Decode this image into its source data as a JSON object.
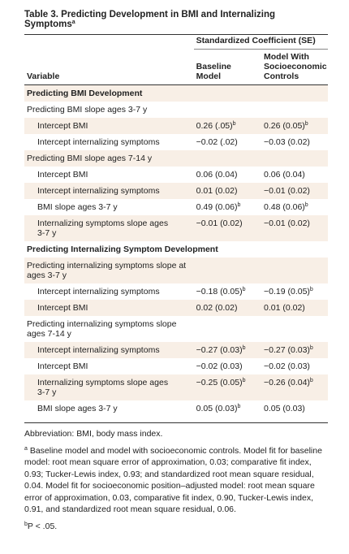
{
  "title": "Table 3. Predicting Development in BMI and Internalizing Symptoms",
  "title_sup": "a",
  "header": {
    "group": "Standardized Coefficient (SE)",
    "variable": "Variable",
    "baseline": "Baseline Model",
    "controls": "Model With Socioeconomic Controls"
  },
  "sections": [
    {
      "title": "Predicting BMI Development",
      "groups": [
        {
          "title": "Predicting BMI slope ages 3-7 y",
          "rows": [
            {
              "label": "Intercept BMI",
              "baseline": "0.26 (.05)",
              "baseline_sup": "b",
              "controls": "0.26 (0.05)",
              "controls_sup": "b"
            },
            {
              "label": "Intercept internalizing symptoms",
              "baseline": "−0.02 (.02)",
              "controls": "−0.03 (0.02)"
            }
          ]
        },
        {
          "title": "Predicting BMI slope ages 7-14 y",
          "rows": [
            {
              "label": "Intercept BMI",
              "baseline": "0.06 (0.04)",
              "controls": "0.06 (0.04)"
            },
            {
              "label": "Intercept internalizing symptoms",
              "baseline": "0.01 (0.02)",
              "controls": "−0.01 (0.02)"
            },
            {
              "label": "BMI slope ages 3-7 y",
              "baseline": "0.49 (0.06)",
              "baseline_sup": "b",
              "controls": "0.48 (0.06)",
              "controls_sup": "b"
            },
            {
              "label": "Internalizing symptoms slope ages 3-7 y",
              "baseline": "−0.01 (0.02)",
              "controls": "−0.01 (0.02)"
            }
          ]
        }
      ]
    },
    {
      "title": "Predicting Internalizing Symptom Development",
      "groups": [
        {
          "title": "Predicting internalizing symptoms slope at ages 3-7 y",
          "rows": [
            {
              "label": "Intercept internalizing symptoms",
              "baseline": "−0.18 (0.05)",
              "baseline_sup": "b",
              "controls": "−0.19 (0.05)",
              "controls_sup": "b"
            },
            {
              "label": "Intercept BMI",
              "baseline": "0.02 (0.02)",
              "controls": "0.01 (0.02)"
            }
          ]
        },
        {
          "title": "Predicting internalizing symptoms slope ages 7-14 y",
          "rows": [
            {
              "label": "Intercept internalizing symptoms",
              "baseline": "−0.27 (0.03)",
              "baseline_sup": "b",
              "controls": "−0.27 (0.03)",
              "controls_sup": "b"
            },
            {
              "label": "Intercept BMI",
              "baseline": "−0.02 (0.03)",
              "controls": "−0.02 (0.03)"
            },
            {
              "label": "Internalizing symptoms slope ages 3-7 y",
              "baseline": "−0.25 (0.05)",
              "baseline_sup": "b",
              "controls": "−0.26 (0.04)",
              "controls_sup": "b"
            },
            {
              "label": "BMI slope ages 3-7 y",
              "baseline": "0.05 (0.03)",
              "baseline_sup": "b",
              "controls": "0.05 (0.03)"
            }
          ]
        }
      ]
    }
  ],
  "footnotes": {
    "abbreviation": "Abbreviation: BMI, body mass index.",
    "a_mark": "a",
    "a": "Baseline model and model with socioeconomic controls. Model fit for baseline model: root mean square error of approximation, 0.03; comparative fit index, 0.93; Tucker-Lewis index, 0.93; and standardized root mean square residual, 0.04. Model fit for socioeconomic position–adjusted model: root mean square error of approximation, 0.03, comparative fit index, 0.90, Tucker-Lewis index, 0.91, and standardized root mean square residual, 0.06.",
    "b_mark": "b",
    "b": "P < .05."
  }
}
